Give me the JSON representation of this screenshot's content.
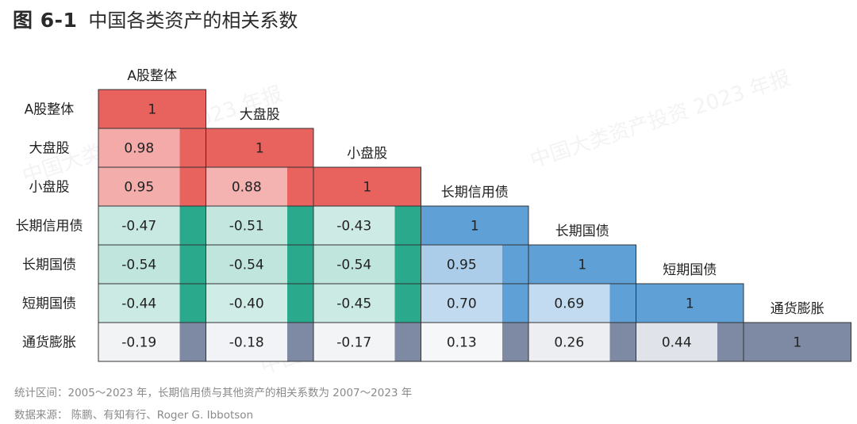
{
  "title": {
    "number": "图 6-1",
    "text": "中国各类资产的相关系数"
  },
  "watermark": "中国大类资产投资 2023 年报",
  "footnotes": {
    "line1": "统计区间：2005～2023 年，长期信用债与其他资产的相关系数为 2007～2023 年",
    "line2": "数据来源：  陈鹏、有知有行、Roger G. Ibbotson"
  },
  "chart_data": {
    "type": "heatmap",
    "title": "中国各类资产的相关系数",
    "assets": [
      "A股整体",
      "大盘股",
      "小盘股",
      "长期信用债",
      "长期国债",
      "短期国债",
      "通货膨胀"
    ],
    "matrix": [
      [
        "1"
      ],
      [
        "0.98",
        "1"
      ],
      [
        "0.95",
        "0.88",
        "1"
      ],
      [
        "-0.47",
        "-0.51",
        "-0.43",
        "1"
      ],
      [
        "-0.54",
        "-0.54",
        "-0.54",
        "0.95",
        "1"
      ],
      [
        "-0.44",
        "-0.40",
        "-0.45",
        "0.70",
        "0.69",
        "1"
      ],
      [
        "-0.19",
        "-0.18",
        "-0.17",
        "0.13",
        "0.26",
        "0.44",
        "1"
      ]
    ],
    "colors": {
      "equity": "#e8625e",
      "bond": "#5fa0d7",
      "equity_bond": "#2aa98c",
      "inflation": "#7e8aa3",
      "grid": "#333333"
    }
  }
}
